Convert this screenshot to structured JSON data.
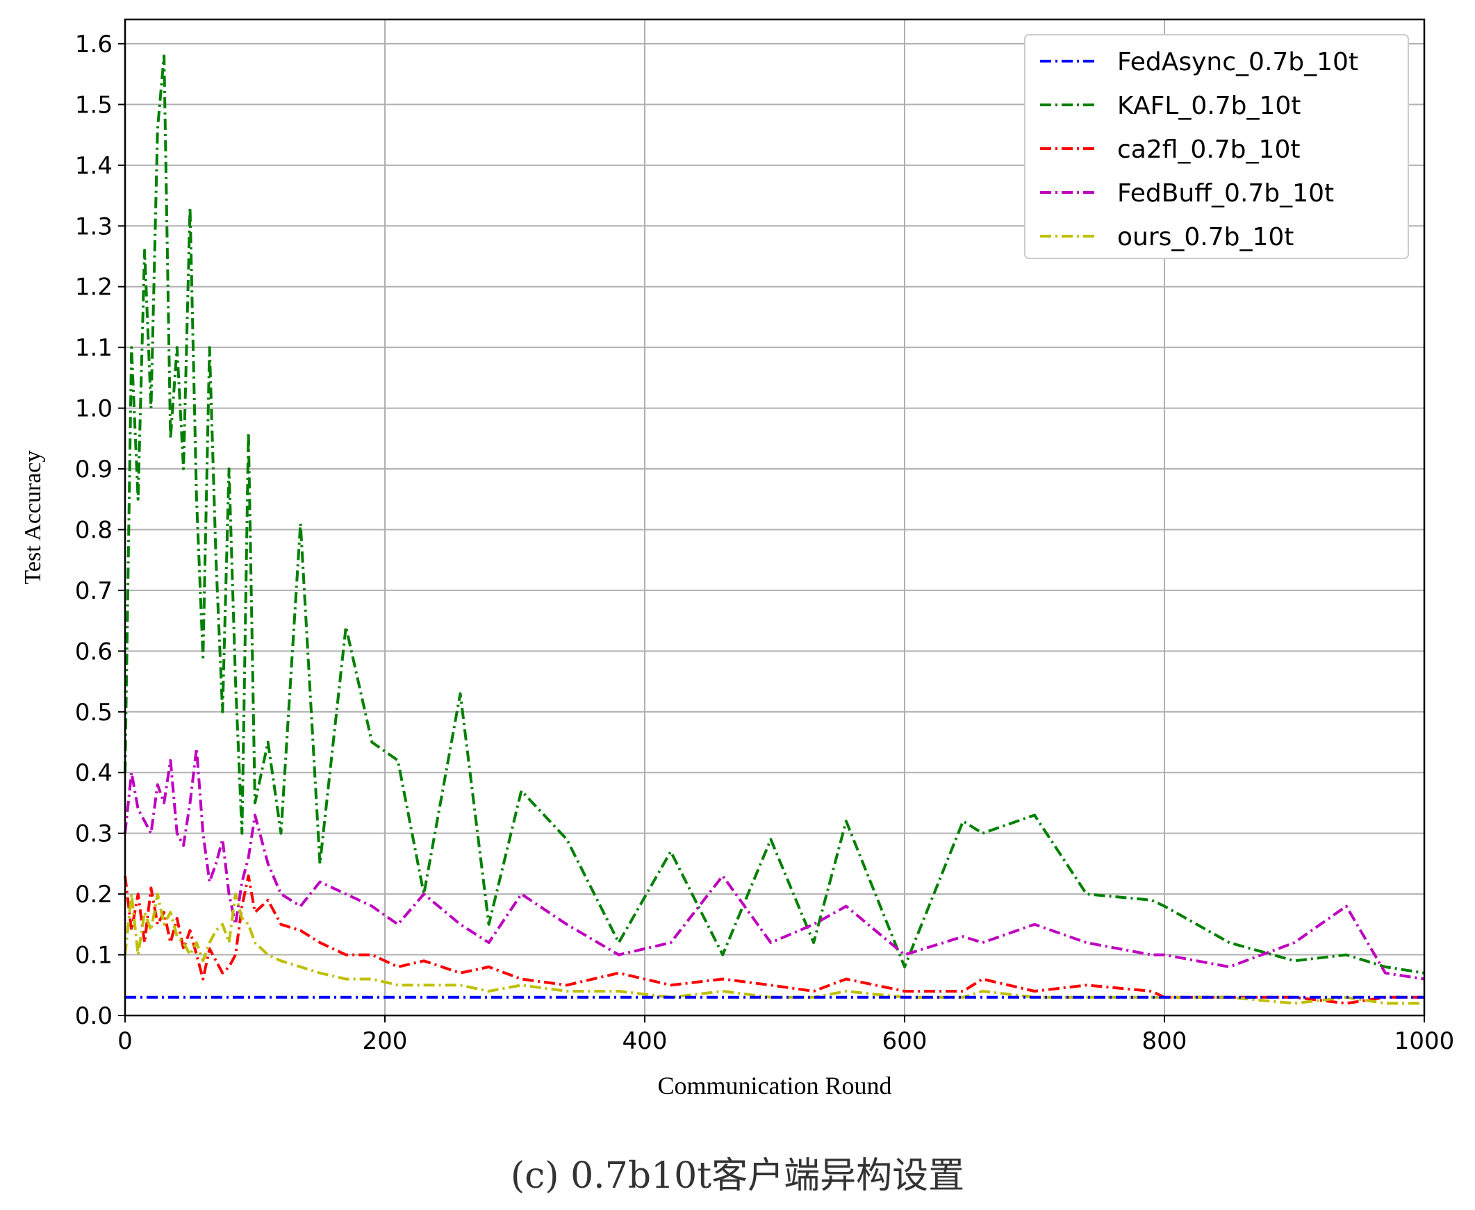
{
  "figure": {
    "caption": "(c) 0.7b10t客户端异构设置"
  },
  "chart_data": {
    "type": "line",
    "xlabel": "Communication Round",
    "ylabel": "Test Accuracy",
    "xlim": [
      0,
      1000
    ],
    "ylim": [
      0,
      1.64
    ],
    "xticks": [
      "0",
      "200",
      "400",
      "600",
      "800",
      "1000"
    ],
    "xtick_values": [
      0,
      200,
      400,
      600,
      800,
      1000
    ],
    "yticks": [
      "0.0",
      "0.1",
      "0.2",
      "0.3",
      "0.4",
      "0.5",
      "0.6",
      "0.7",
      "0.8",
      "0.9",
      "1.0",
      "1.1",
      "1.2",
      "1.3",
      "1.4",
      "1.5",
      "1.6"
    ],
    "ytick_values": [
      0,
      0.1,
      0.2,
      0.3,
      0.4,
      0.5,
      0.6,
      0.7,
      0.8,
      0.9,
      1.0,
      1.1,
      1.2,
      1.3,
      1.4,
      1.5,
      1.6
    ],
    "grid": true,
    "legend_position": "top-right",
    "line_style": "dash-dot",
    "x": [
      0,
      5,
      10,
      15,
      20,
      25,
      30,
      35,
      40,
      45,
      50,
      55,
      60,
      65,
      70,
      75,
      80,
      85,
      90,
      95,
      100,
      110,
      120,
      135,
      150,
      170,
      190,
      210,
      230,
      258,
      280,
      305,
      340,
      380,
      420,
      460,
      497,
      530,
      555,
      600,
      645,
      660,
      700,
      740,
      790,
      800,
      850,
      900,
      940,
      970,
      1000
    ],
    "series": [
      {
        "name": "FedAsync_0.7b_10t",
        "color": "#0000ff",
        "values": [
          0.03,
          0.03,
          0.03,
          0.03,
          0.03,
          0.03,
          0.03,
          0.03,
          0.03,
          0.03,
          0.03,
          0.03,
          0.03,
          0.03,
          0.03,
          0.03,
          0.03,
          0.03,
          0.03,
          0.03,
          0.03,
          0.03,
          0.03,
          0.03,
          0.03,
          0.03,
          0.03,
          0.03,
          0.03,
          0.03,
          0.03,
          0.03,
          0.03,
          0.03,
          0.03,
          0.03,
          0.03,
          0.03,
          0.03,
          0.03,
          0.03,
          0.03,
          0.03,
          0.03,
          0.03,
          0.03,
          0.03,
          0.03,
          0.03,
          0.03,
          0.03
        ]
      },
      {
        "name": "KAFL_0.7b_10t",
        "color": "#008000",
        "values": [
          0.4,
          1.1,
          0.85,
          1.26,
          1.0,
          1.46,
          1.58,
          0.95,
          1.1,
          0.9,
          1.33,
          0.85,
          0.59,
          1.1,
          0.75,
          0.5,
          0.9,
          0.55,
          0.3,
          0.96,
          0.35,
          0.45,
          0.3,
          0.81,
          0.25,
          0.64,
          0.45,
          0.42,
          0.2,
          0.53,
          0.15,
          0.37,
          0.29,
          0.12,
          0.27,
          0.1,
          0.29,
          0.12,
          0.32,
          0.08,
          0.32,
          0.3,
          0.33,
          0.2,
          0.19,
          0.18,
          0.12,
          0.09,
          0.1,
          0.08,
          0.07
        ]
      },
      {
        "name": "ca2fl_0.7b_10t",
        "color": "#ff0000",
        "values": [
          0.23,
          0.14,
          0.2,
          0.12,
          0.21,
          0.15,
          0.17,
          0.12,
          0.16,
          0.11,
          0.14,
          0.1,
          0.06,
          0.11,
          0.09,
          0.07,
          0.08,
          0.1,
          0.18,
          0.23,
          0.17,
          0.19,
          0.15,
          0.14,
          0.12,
          0.1,
          0.1,
          0.08,
          0.09,
          0.07,
          0.08,
          0.06,
          0.05,
          0.07,
          0.05,
          0.06,
          0.05,
          0.04,
          0.06,
          0.04,
          0.04,
          0.06,
          0.04,
          0.05,
          0.04,
          0.03,
          0.03,
          0.03,
          0.02,
          0.03,
          0.03
        ]
      },
      {
        "name": "FedBuff_0.7b_10t",
        "color": "#bf00bf",
        "values": [
          0.3,
          0.4,
          0.34,
          0.32,
          0.3,
          0.38,
          0.35,
          0.42,
          0.3,
          0.28,
          0.35,
          0.44,
          0.3,
          0.22,
          0.25,
          0.29,
          0.2,
          0.15,
          0.22,
          0.26,
          0.33,
          0.25,
          0.2,
          0.18,
          0.22,
          0.2,
          0.18,
          0.15,
          0.2,
          0.15,
          0.12,
          0.2,
          0.15,
          0.1,
          0.12,
          0.23,
          0.12,
          0.15,
          0.18,
          0.1,
          0.13,
          0.12,
          0.15,
          0.12,
          0.1,
          0.1,
          0.08,
          0.12,
          0.18,
          0.07,
          0.06
        ]
      },
      {
        "name": "ours_0.7b_10t",
        "color": "#bfbf00",
        "values": [
          0.1,
          0.2,
          0.1,
          0.17,
          0.14,
          0.2,
          0.15,
          0.17,
          0.13,
          0.12,
          0.1,
          0.12,
          0.09,
          0.12,
          0.14,
          0.15,
          0.12,
          0.2,
          0.16,
          0.15,
          0.12,
          0.1,
          0.09,
          0.08,
          0.07,
          0.06,
          0.06,
          0.05,
          0.05,
          0.05,
          0.04,
          0.05,
          0.04,
          0.04,
          0.03,
          0.04,
          0.03,
          0.03,
          0.04,
          0.03,
          0.03,
          0.04,
          0.03,
          0.03,
          0.03,
          0.03,
          0.03,
          0.02,
          0.03,
          0.02,
          0.02
        ]
      }
    ]
  }
}
